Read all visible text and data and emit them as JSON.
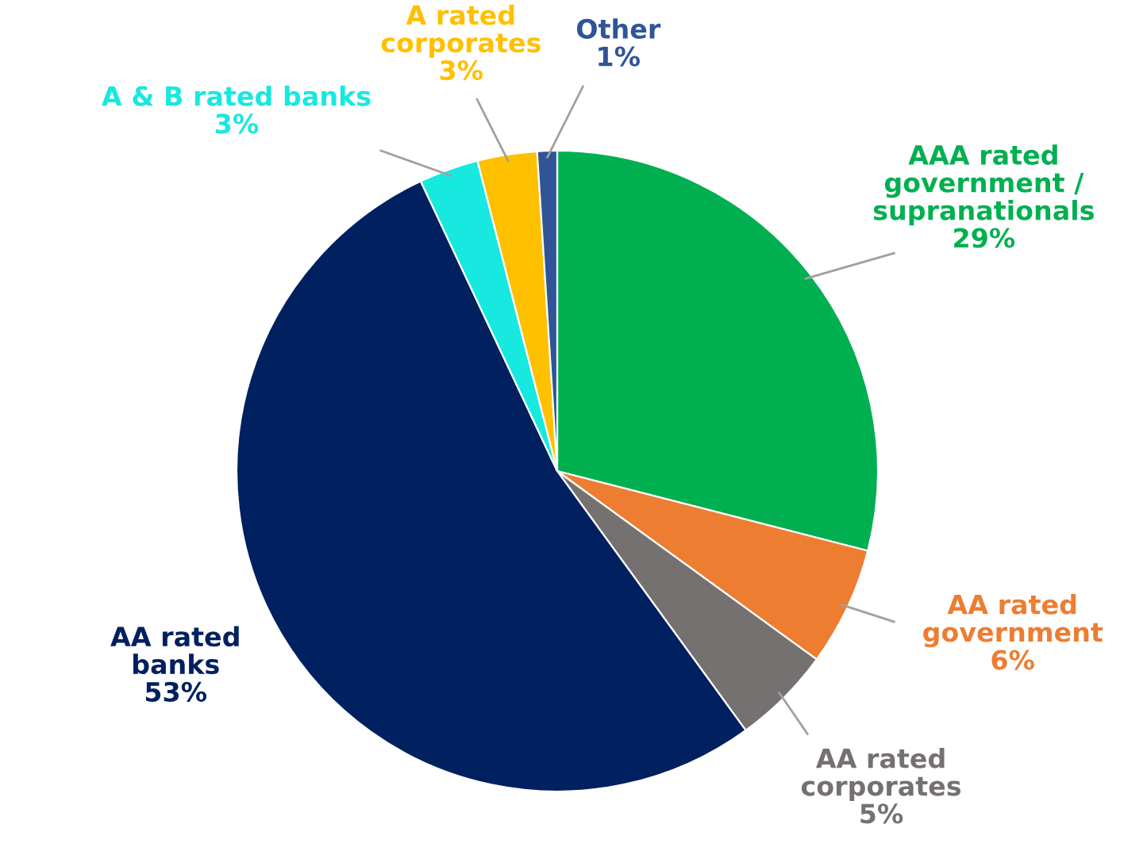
{
  "chart_data": {
    "type": "pie",
    "categories": [
      "AAA rated\ngovernment /\nsupranationals",
      "AA rated\ngovernment",
      "AA rated\ncorporates",
      "AA rated\nbanks",
      "A & B rated banks",
      "A rated\ncorporates",
      "Other"
    ],
    "values": [
      29,
      6,
      5,
      53,
      3,
      3,
      1
    ],
    "value_labels": [
      "29%",
      "6%",
      "5%",
      "53%",
      "3%",
      "3%",
      "1%"
    ],
    "colors": [
      "#00b050",
      "#ed7d31",
      "#767171",
      "#002060",
      "#17e8e0",
      "#ffc000",
      "#2f5597"
    ],
    "legend": false
  }
}
